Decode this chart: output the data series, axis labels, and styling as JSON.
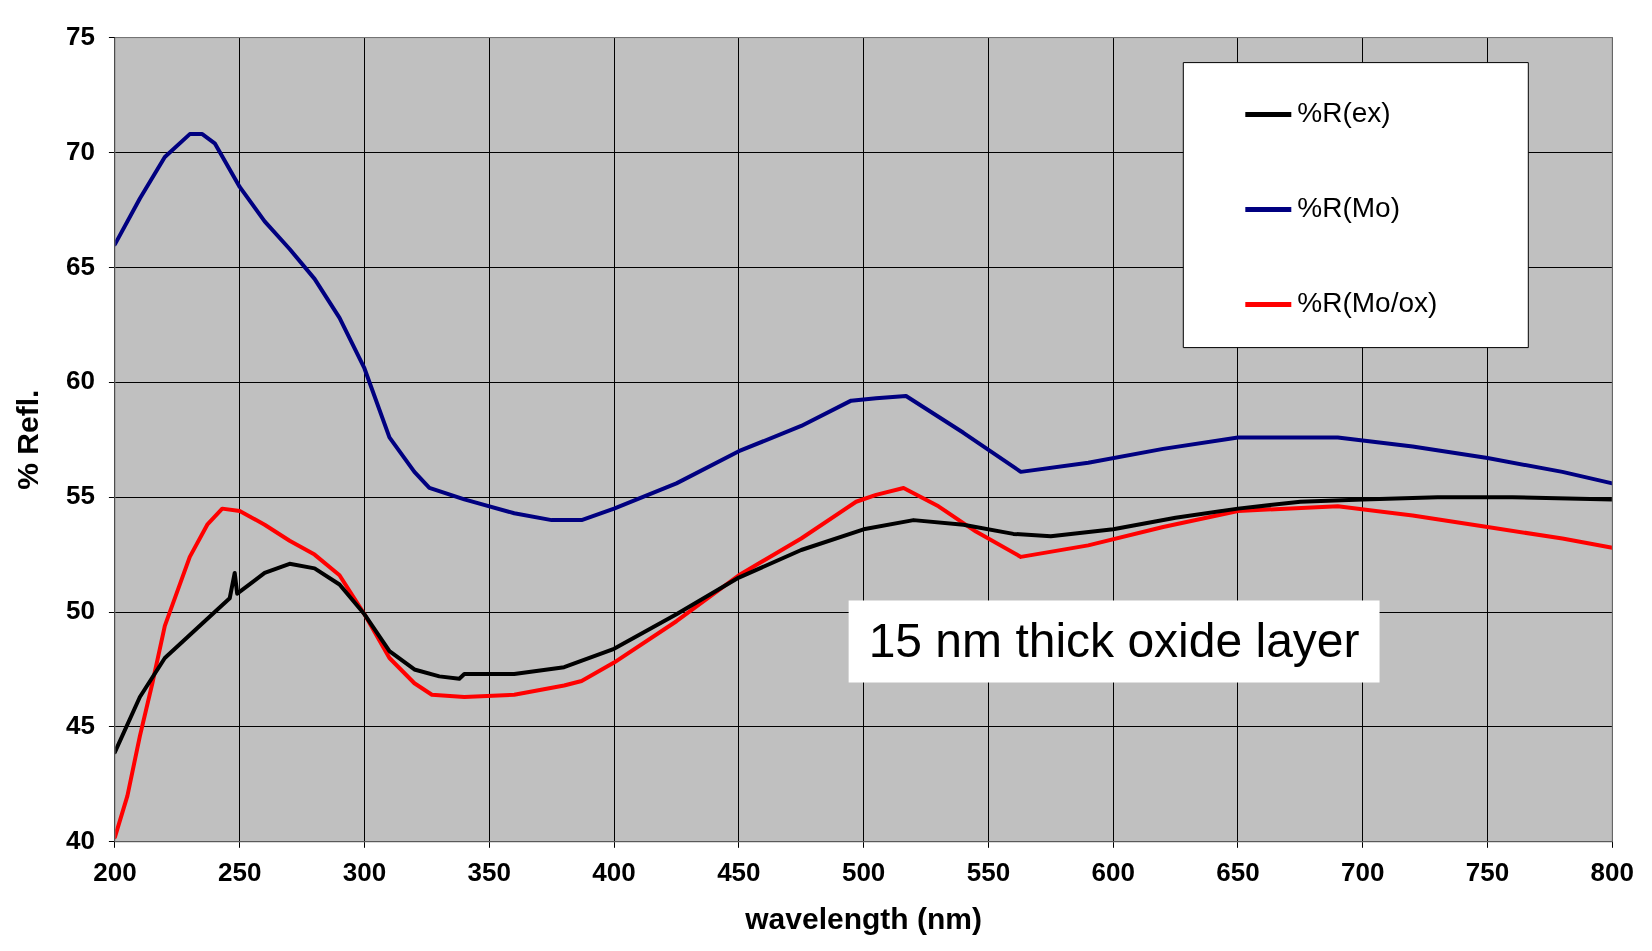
{
  "chart_data": {
    "type": "line",
    "xlabel": "wavelength (nm)",
    "ylabel": "% Refl.",
    "xlim": [
      200,
      800
    ],
    "ylim": [
      40,
      75
    ],
    "xticks": [
      200,
      250,
      300,
      350,
      400,
      450,
      500,
      550,
      600,
      650,
      700,
      750,
      800
    ],
    "yticks": [
      40,
      45,
      50,
      55,
      60,
      65,
      70,
      75
    ],
    "grid": true,
    "legend": "top right",
    "marker": "none",
    "line_style": "solid",
    "annotations": [
      "15 nm thick oxide layer"
    ],
    "series": [
      {
        "name": "%R(ex)",
        "color": "#000000",
        "x": [
          200,
          210,
          220,
          230,
          240,
          246,
          248,
          249,
          260,
          270,
          280,
          290,
          300,
          310,
          320,
          330,
          338,
          340,
          360,
          380,
          400,
          425,
          450,
          475,
          500,
          520,
          540,
          560,
          575,
          600,
          625,
          650,
          675,
          700,
          730,
          760,
          800
        ],
        "values": [
          43.9,
          46.3,
          48,
          49,
          50,
          50.6,
          51.7,
          50.8,
          51.7,
          52.1,
          51.9,
          51.2,
          49.9,
          48.3,
          47.5,
          47.2,
          47.1,
          47.3,
          47.3,
          47.6,
          48.4,
          49.9,
          51.5,
          52.7,
          53.6,
          54,
          53.8,
          53.4,
          53.3,
          53.6,
          54.1,
          54.5,
          54.8,
          54.9,
          55,
          55,
          54.9
        ]
      },
      {
        "name": "%R(Mo)",
        "color": "#000080",
        "x": [
          200,
          210,
          220,
          230,
          235,
          240,
          250,
          260,
          270,
          280,
          290,
          300,
          310,
          320,
          326,
          340,
          360,
          375,
          387,
          400,
          425,
          450,
          475,
          495,
          505,
          517,
          540,
          563,
          590,
          620,
          650,
          690,
          720,
          750,
          780,
          800
        ],
        "values": [
          66,
          68,
          69.8,
          70.8,
          70.8,
          70.4,
          68.5,
          67,
          65.8,
          64.5,
          62.8,
          60.6,
          57.6,
          56.1,
          55.4,
          54.9,
          54.3,
          54,
          54,
          54.5,
          55.6,
          57,
          58.1,
          59.2,
          59.3,
          59.4,
          57.8,
          56.1,
          56.5,
          57.1,
          57.6,
          57.6,
          57.2,
          56.7,
          56.1,
          55.6
        ]
      },
      {
        "name": "%R(Mo/ox)",
        "color": "#ff0000",
        "x": [
          200,
          205,
          210,
          215,
          220,
          230,
          237,
          243,
          250,
          260,
          270,
          280,
          290,
          300,
          310,
          320,
          327,
          340,
          360,
          380,
          387,
          400,
          425,
          450,
          475,
          497,
          505,
          516,
          530,
          545,
          563,
          590,
          620,
          650,
          690,
          720,
          750,
          780,
          800
        ],
        "values": [
          40.2,
          42,
          44.6,
          46.9,
          49.4,
          52.4,
          53.8,
          54.5,
          54.4,
          53.8,
          53.1,
          52.5,
          51.6,
          49.9,
          48,
          46.9,
          46.4,
          46.3,
          46.4,
          46.8,
          47,
          47.8,
          49.6,
          51.6,
          53.2,
          54.8,
          55.1,
          55.4,
          54.6,
          53.5,
          52.4,
          52.9,
          53.7,
          54.4,
          54.6,
          54.2,
          53.7,
          53.2,
          52.8
        ]
      }
    ]
  }
}
